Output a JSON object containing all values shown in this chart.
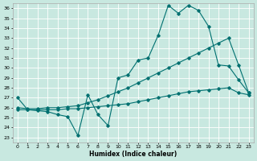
{
  "xlabel": "Humidex (Indice chaleur)",
  "bg_color": "#c8e8e0",
  "grid_color": "#ffffff",
  "line_color": "#007070",
  "xlim": [
    -0.5,
    23.5
  ],
  "ylim": [
    22.5,
    36.5
  ],
  "xticks": [
    0,
    1,
    2,
    3,
    4,
    5,
    6,
    7,
    8,
    9,
    10,
    11,
    12,
    13,
    14,
    15,
    16,
    17,
    18,
    19,
    20,
    21,
    22,
    23
  ],
  "yticks": [
    23,
    24,
    25,
    26,
    27,
    28,
    29,
    30,
    31,
    32,
    33,
    34,
    35,
    36
  ],
  "series1_x": [
    0,
    1,
    2,
    3,
    4,
    5,
    6,
    7,
    8,
    9,
    10,
    11,
    12,
    13,
    14,
    15,
    16,
    17,
    18,
    19,
    20,
    21,
    22,
    23
  ],
  "series1_y": [
    27.0,
    25.8,
    25.7,
    25.6,
    25.3,
    25.1,
    23.2,
    27.3,
    25.3,
    24.2,
    29.0,
    29.3,
    30.8,
    31.0,
    33.3,
    36.3,
    35.5,
    36.3,
    35.8,
    34.2,
    30.3,
    30.2,
    28.8,
    27.5
  ],
  "series2_x": [
    0,
    1,
    2,
    3,
    4,
    5,
    6,
    7,
    8,
    9,
    10,
    11,
    12,
    13,
    14,
    15,
    16,
    17,
    18,
    19,
    20,
    21,
    22,
    23
  ],
  "series2_y": [
    26.0,
    25.9,
    25.9,
    26.0,
    26.0,
    26.1,
    26.2,
    26.5,
    26.8,
    27.2,
    27.6,
    28.0,
    28.5,
    29.0,
    29.5,
    30.0,
    30.5,
    31.0,
    31.5,
    32.0,
    32.5,
    33.0,
    30.3,
    27.5
  ],
  "series3_x": [
    0,
    1,
    2,
    3,
    4,
    5,
    6,
    7,
    8,
    9,
    10,
    11,
    12,
    13,
    14,
    15,
    16,
    17,
    18,
    19,
    20,
    21,
    22,
    23
  ],
  "series3_y": [
    25.8,
    25.8,
    25.8,
    25.8,
    25.8,
    25.9,
    25.9,
    26.0,
    26.1,
    26.2,
    26.3,
    26.4,
    26.6,
    26.8,
    27.0,
    27.2,
    27.4,
    27.6,
    27.7,
    27.8,
    27.9,
    28.0,
    27.5,
    27.3
  ]
}
